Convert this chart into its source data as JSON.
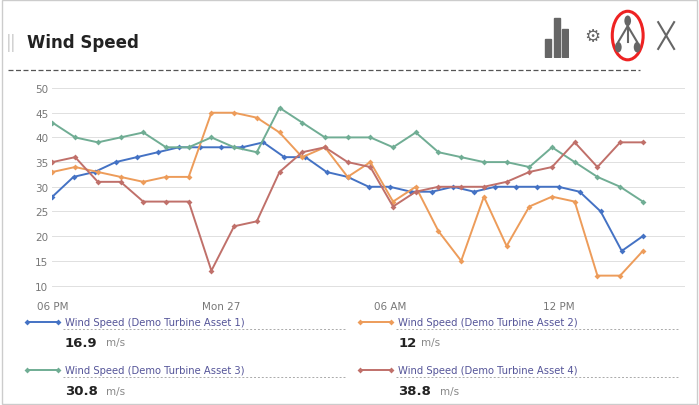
{
  "title": "Wind Speed",
  "background_color": "#ffffff",
  "border_color": "#cccccc",
  "ylim": [
    8,
    52
  ],
  "yticks": [
    10,
    15,
    20,
    25,
    30,
    35,
    40,
    45,
    50
  ],
  "xtick_labels": [
    "06 PM",
    "Mon 27",
    "06 AM",
    "12 PM"
  ],
  "xtick_positions": [
    0,
    8,
    16,
    24
  ],
  "xlim": [
    0,
    30
  ],
  "series": [
    {
      "name": "Wind Speed (Demo Turbine Asset 1)",
      "color": "#4472c4",
      "value_label": "16.9",
      "unit": "m/s",
      "data": [
        28,
        32,
        33,
        35,
        36,
        37,
        38,
        38,
        38,
        38,
        39,
        36,
        36,
        33,
        32,
        30,
        30,
        29,
        29,
        30,
        29,
        30,
        30,
        30,
        30,
        29,
        25,
        17,
        20
      ]
    },
    {
      "name": "Wind Speed (Demo Turbine Asset 2)",
      "color": "#ed9c5a",
      "value_label": "12",
      "unit": "m/s",
      "data": [
        33,
        34,
        33,
        32,
        31,
        32,
        32,
        45,
        45,
        44,
        41,
        36,
        38,
        32,
        35,
        27,
        30,
        21,
        15,
        28,
        18,
        26,
        28,
        27,
        12,
        12,
        17
      ]
    },
    {
      "name": "Wind Speed (Demo Turbine Asset 3)",
      "color": "#70ad94",
      "value_label": "30.8",
      "unit": "m/s",
      "data": [
        43,
        40,
        39,
        40,
        41,
        38,
        38,
        40,
        38,
        37,
        46,
        43,
        40,
        40,
        40,
        38,
        41,
        37,
        36,
        35,
        35,
        34,
        38,
        35,
        32,
        30,
        27
      ]
    },
    {
      "name": "Wind Speed (Demo Turbine Asset 4)",
      "color": "#c0706a",
      "value_label": "38.8",
      "unit": "m/s",
      "data": [
        35,
        36,
        31,
        31,
        27,
        27,
        27,
        13,
        22,
        23,
        33,
        37,
        38,
        35,
        34,
        26,
        29,
        30,
        30,
        30,
        31,
        33,
        34,
        39,
        34,
        39,
        39
      ]
    }
  ],
  "icon_color": "#666666",
  "highlight_color": "#ee2222",
  "title_color": "#222222",
  "tick_color": "#777777",
  "grid_color": "#e0e0e0",
  "legend_name_color": "#555599",
  "legend_val_color": "#222222",
  "legend_unit_color": "#888888",
  "dotted_line_color": "#aaaaaa"
}
